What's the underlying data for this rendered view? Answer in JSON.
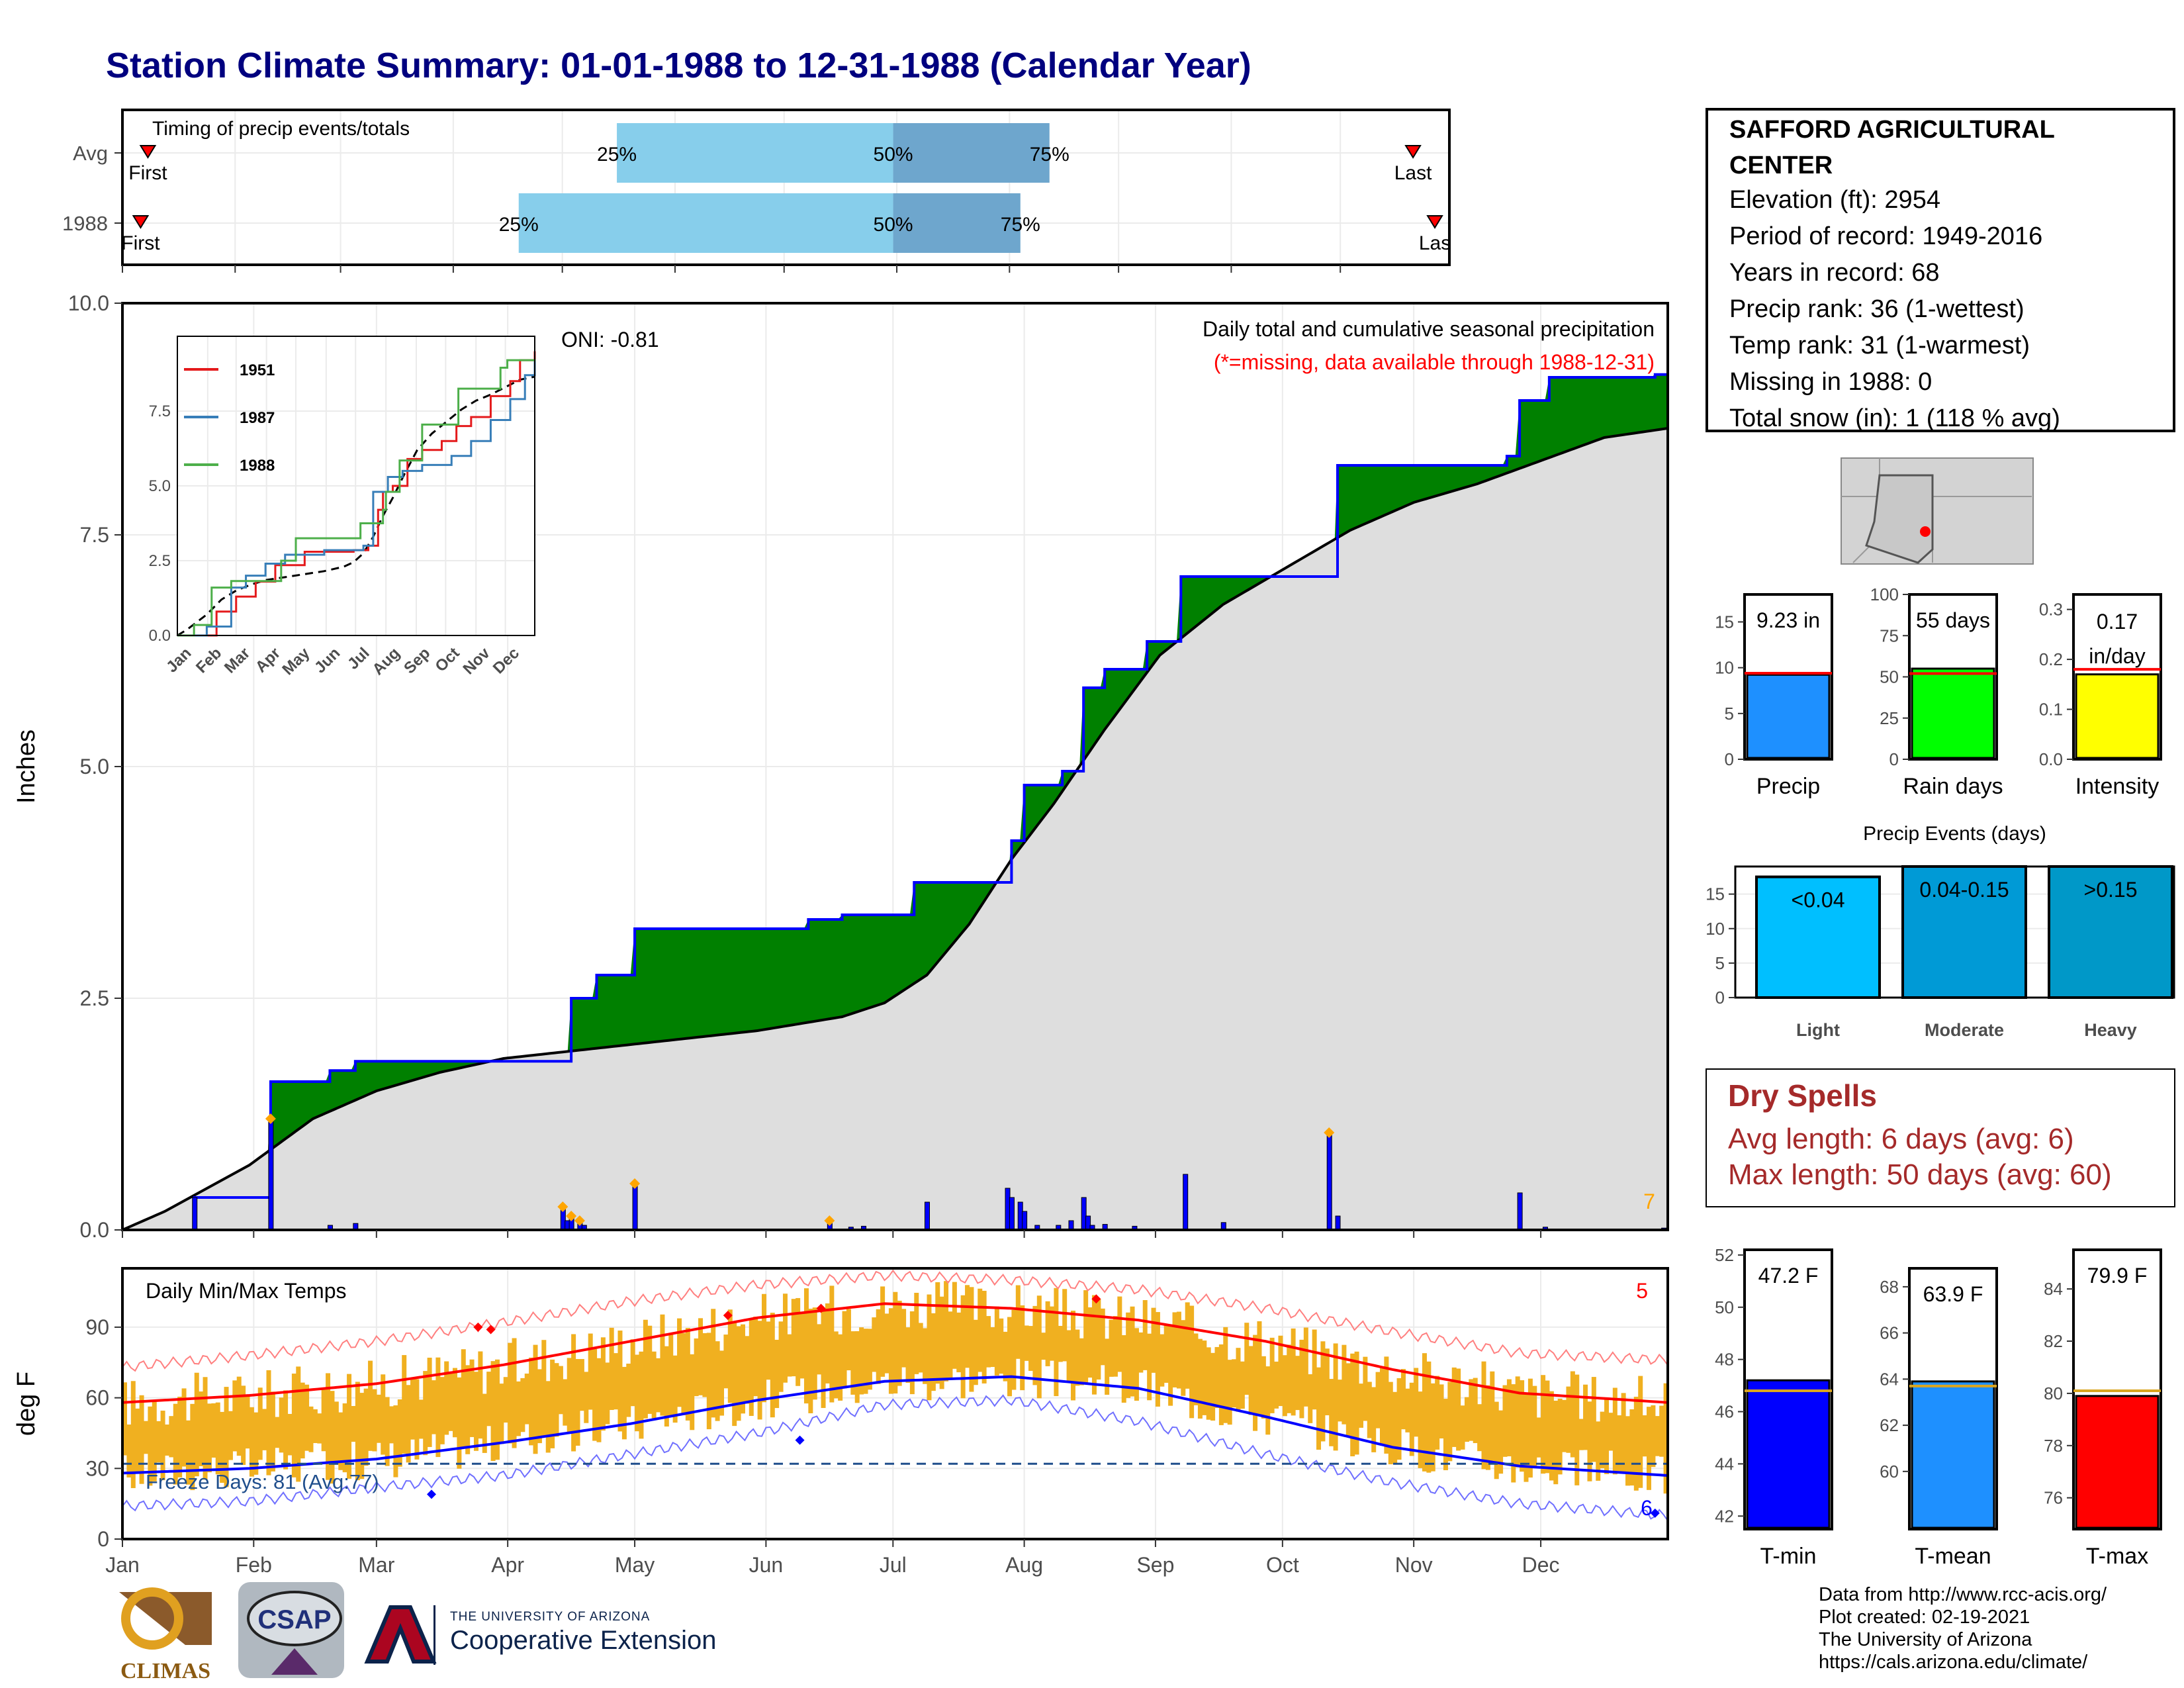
{
  "title": "Station Climate Summary: 01-01-1988 to 12-31-1988 (Calendar Year)",
  "station": {
    "name_line1": "SAFFORD AGRICULTURAL",
    "name_line2": "CENTER",
    "elevation": "Elevation (ft): 2954",
    "period": "Period of record: 1949-2016",
    "years": "Years in record: 68",
    "precip_rank": "Precip rank: 36 (1-wettest)",
    "temp_rank": "Temp rank: 31 (1-warmest)",
    "missing": "Missing in 1988: 0",
    "snow": "Total snow (in): 1 (118 % avg)"
  },
  "dry_spells": {
    "title": "Dry Spells",
    "avg": "Avg length: 6 days (avg: 6)",
    "max": "Max length: 50 days (avg: 60)"
  },
  "credits": {
    "line1": "Data from http://www.rcc-acis.org/",
    "line2": "Plot created: 02-19-2021",
    "line3": "The University of Arizona",
    "line4": "https://cals.arizona.edu/climate/"
  },
  "logos": {
    "climas": "CLIMAS",
    "csap": "CSAP",
    "ua_small": "THE UNIVERSITY OF ARIZONA",
    "ua_big": "Cooperative Extension"
  },
  "colors": {
    "title": "#00007f",
    "green": "#008000",
    "grey": "#dedede",
    "brown": "#8b5a12",
    "blue": "#0000ff",
    "bar25": "#87ceeb",
    "bar50": "#6ea6cd",
    "temp_band": "#f0b020",
    "red": "#ff0000",
    "dry": "#a52a2a",
    "light": "#00bfff",
    "moderate": "#009ad6",
    "heavy": "#0098c8"
  },
  "chart_data": [
    {
      "type": "bar",
      "id": "timing",
      "title": "Timing of precip events/totals",
      "rows": [
        {
          "label": "Avg",
          "first": "First",
          "last": "Last",
          "p25": "25%",
          "p50": "50%",
          "p75": "75%",
          "first_doy": 7,
          "p25_doy": 136,
          "p50_doy": 212,
          "p75_doy": 255,
          "last_doy": 355
        },
        {
          "label": "1988",
          "first": "First",
          "last": "Las",
          "p25": "25%",
          "p50": "50%",
          "p75": "75%",
          "first_doy": 5,
          "p25_doy": 109,
          "p50_doy": 212,
          "p75_doy": 247,
          "last_doy": 361
        }
      ]
    },
    {
      "type": "area",
      "id": "precip",
      "title": "Daily total and cumulative seasonal precipitation",
      "subtitle": "(*=missing, data available through 1988-12-31)",
      "oni": "ONI: -0.81",
      "ylabel": "Inches",
      "ylim": [
        0,
        10
      ],
      "yticks": [
        "0.0",
        "2.5",
        "5.0",
        "7.5",
        "10.0"
      ],
      "corner_label": "7",
      "x_ticks": [
        "Jan",
        "Feb",
        "Mar",
        "Apr",
        "May",
        "Jun",
        "Jul",
        "Aug",
        "Sep",
        "Oct",
        "Nov",
        "Dec"
      ],
      "cumulative_1988": [
        [
          0,
          0
        ],
        [
          17,
          0.35
        ],
        [
          35,
          1.6
        ],
        [
          49,
          1.72
        ],
        [
          55,
          1.82
        ],
        [
          97,
          1.82
        ],
        [
          106,
          2.5
        ],
        [
          112,
          2.75
        ],
        [
          121,
          3.25
        ],
        [
          162,
          3.35
        ],
        [
          170,
          3.4
        ],
        [
          187,
          3.75
        ],
        [
          203,
          3.75
        ],
        [
          210,
          4.2
        ],
        [
          213,
          4.8
        ],
        [
          222,
          4.95
        ],
        [
          227,
          5.85
        ],
        [
          232,
          6.05
        ],
        [
          242,
          6.35
        ],
        [
          250,
          7.05
        ],
        [
          285,
          7.05
        ],
        [
          287,
          8.25
        ],
        [
          327,
          8.35
        ],
        [
          330,
          8.95
        ],
        [
          337,
          9.2
        ],
        [
          362,
          9.23
        ],
        [
          365,
          9.23
        ]
      ],
      "cumulative_avg": [
        [
          0,
          0
        ],
        [
          10,
          0.2
        ],
        [
          30,
          0.7
        ],
        [
          45,
          1.2
        ],
        [
          60,
          1.5
        ],
        [
          75,
          1.7
        ],
        [
          90,
          1.85
        ],
        [
          120,
          2.0
        ],
        [
          150,
          2.15
        ],
        [
          170,
          2.3
        ],
        [
          180,
          2.45
        ],
        [
          190,
          2.75
        ],
        [
          200,
          3.3
        ],
        [
          210,
          4.0
        ],
        [
          220,
          4.6
        ],
        [
          232,
          5.4
        ],
        [
          245,
          6.2
        ],
        [
          260,
          6.75
        ],
        [
          275,
          7.15
        ],
        [
          290,
          7.55
        ],
        [
          305,
          7.85
        ],
        [
          320,
          8.05
        ],
        [
          335,
          8.3
        ],
        [
          350,
          8.55
        ],
        [
          365,
          8.65
        ]
      ],
      "daily": [
        [
          17,
          0.35
        ],
        [
          35,
          1.2
        ],
        [
          49,
          0.05
        ],
        [
          55,
          0.07
        ],
        [
          104,
          0.25
        ],
        [
          105,
          0.1
        ],
        [
          106,
          0.15
        ],
        [
          108,
          0.1
        ],
        [
          109,
          0.05
        ],
        [
          121,
          0.5
        ],
        [
          167,
          0.1
        ],
        [
          172,
          0.03
        ],
        [
          175,
          0.04
        ],
        [
          190,
          0.3
        ],
        [
          209,
          0.45
        ],
        [
          210,
          0.35
        ],
        [
          212,
          0.3
        ],
        [
          213,
          0.2
        ],
        [
          216,
          0.05
        ],
        [
          221,
          0.05
        ],
        [
          224,
          0.1
        ],
        [
          227,
          0.35
        ],
        [
          228,
          0.15
        ],
        [
          229,
          0.05
        ],
        [
          232,
          0.06
        ],
        [
          239,
          0.04
        ],
        [
          251,
          0.6
        ],
        [
          260,
          0.08
        ],
        [
          285,
          1.05
        ],
        [
          287,
          0.15
        ],
        [
          330,
          0.4
        ],
        [
          336,
          0.03
        ],
        [
          364,
          0.02
        ]
      ],
      "inset": {
        "type": "line",
        "ylim": [
          0,
          10
        ],
        "yticks": [
          "0.0",
          "2.5",
          "5.0",
          "7.5"
        ],
        "x_ticks": [
          "Jan",
          "Feb",
          "Mar",
          "Apr",
          "May",
          "Jun",
          "Jul",
          "Aug",
          "Sep",
          "Oct",
          "Nov",
          "Dec"
        ],
        "series": [
          {
            "name": "1951",
            "color": "#e41a1c",
            "values": [
              [
                0,
                0
              ],
              [
                40,
                0.8
              ],
              [
                60,
                1.3
              ],
              [
                80,
                1.8
              ],
              [
                100,
                2.35
              ],
              [
                130,
                2.8
              ],
              [
                180,
                2.85
              ],
              [
                195,
                3.0
              ],
              [
                205,
                4.2
              ],
              [
                210,
                4.8
              ],
              [
                220,
                5.0
              ],
              [
                235,
                5.9
              ],
              [
                250,
                6.2
              ],
              [
                270,
                6.5
              ],
              [
                285,
                7.0
              ],
              [
                300,
                7.3
              ],
              [
                320,
                8.0
              ],
              [
                340,
                8.5
              ],
              [
                350,
                9.2
              ],
              [
                365,
                9.5
              ]
            ]
          },
          {
            "name": "1987",
            "color": "#377eb8",
            "values": [
              [
                0,
                0
              ],
              [
                30,
                0.3
              ],
              [
                55,
                1.6
              ],
              [
                70,
                2.0
              ],
              [
                90,
                2.4
              ],
              [
                110,
                2.7
              ],
              [
                150,
                2.85
              ],
              [
                190,
                3.0
              ],
              [
                200,
                4.8
              ],
              [
                215,
                5.3
              ],
              [
                230,
                5.5
              ],
              [
                250,
                5.7
              ],
              [
                280,
                6.0
              ],
              [
                300,
                6.5
              ],
              [
                320,
                7.2
              ],
              [
                340,
                7.9
              ],
              [
                355,
                8.7
              ],
              [
                365,
                9.2
              ]
            ]
          },
          {
            "name": "1988",
            "color": "#4daf4a",
            "values": [
              [
                0,
                0
              ],
              [
                17,
                0.35
              ],
              [
                35,
                1.6
              ],
              [
                55,
                1.82
              ],
              [
                97,
                1.82
              ],
              [
                106,
                2.5
              ],
              [
                121,
                3.25
              ],
              [
                187,
                3.75
              ],
              [
                210,
                4.2
              ],
              [
                213,
                4.8
              ],
              [
                227,
                5.85
              ],
              [
                250,
                7.05
              ],
              [
                285,
                7.05
              ],
              [
                287,
                8.25
              ],
              [
                330,
                8.95
              ],
              [
                337,
                9.2
              ],
              [
                365,
                9.23
              ]
            ]
          }
        ]
      }
    },
    {
      "type": "line",
      "id": "temps",
      "title": "Daily Min/Max Temps",
      "ylabel": "deg F",
      "ylim": [
        0,
        115
      ],
      "yticks": [
        "0",
        "30",
        "60",
        "90"
      ],
      "corner_label": "5",
      "freeze_label": "Freeze Days: 81 (Avg:77)",
      "freeze_line": 32,
      "corner_label_low": "6",
      "x_ticks": [
        "Jan",
        "Feb",
        "Mar",
        "Apr",
        "May",
        "Jun",
        "Jul",
        "Aug",
        "Sep",
        "Oct",
        "Nov",
        "Dec"
      ],
      "avg_max": [
        [
          0,
          58
        ],
        [
          30,
          61
        ],
        [
          60,
          66
        ],
        [
          90,
          74
        ],
        [
          120,
          84
        ],
        [
          150,
          94
        ],
        [
          180,
          100
        ],
        [
          210,
          98
        ],
        [
          240,
          93
        ],
        [
          270,
          84
        ],
        [
          300,
          72
        ],
        [
          330,
          62
        ],
        [
          365,
          58
        ]
      ],
      "avg_min": [
        [
          0,
          28
        ],
        [
          30,
          30
        ],
        [
          60,
          34
        ],
        [
          90,
          41
        ],
        [
          120,
          49
        ],
        [
          150,
          59
        ],
        [
          180,
          67
        ],
        [
          210,
          69
        ],
        [
          240,
          64
        ],
        [
          270,
          52
        ],
        [
          300,
          39
        ],
        [
          330,
          31
        ],
        [
          365,
          27
        ]
      ],
      "record_max": [
        [
          0,
          73
        ],
        [
          30,
          78
        ],
        [
          60,
          84
        ],
        [
          90,
          92
        ],
        [
          120,
          101
        ],
        [
          150,
          108
        ],
        [
          180,
          112
        ],
        [
          210,
          110
        ],
        [
          240,
          106
        ],
        [
          270,
          98
        ],
        [
          300,
          88
        ],
        [
          330,
          79
        ],
        [
          365,
          76
        ]
      ],
      "record_min": [
        [
          0,
          14
        ],
        [
          30,
          16
        ],
        [
          60,
          22
        ],
        [
          90,
          27
        ],
        [
          120,
          36
        ],
        [
          150,
          45
        ],
        [
          180,
          57
        ],
        [
          210,
          59
        ],
        [
          240,
          50
        ],
        [
          270,
          36
        ],
        [
          300,
          24
        ],
        [
          330,
          15
        ],
        [
          365,
          10
        ]
      ]
    },
    {
      "type": "bar",
      "id": "precip_summary",
      "panels": [
        {
          "label": "Precip",
          "value": 9.23,
          "avg": 9.4,
          "text": "9.23 in",
          "ylim": [
            0,
            18
          ],
          "yticks": [
            "0",
            "5",
            "10",
            "15"
          ],
          "color": "#1e90ff"
        },
        {
          "label": "Rain days",
          "value": 55,
          "avg": 52,
          "text": "55 days",
          "ylim": [
            0,
            100
          ],
          "yticks": [
            "0",
            "25",
            "50",
            "75",
            "100"
          ],
          "color": "#00ff00"
        },
        {
          "label": "Intensity",
          "value": 0.17,
          "avg": 0.18,
          "text": "0.17 in/day",
          "text1": "0.17",
          "text2": "in/day",
          "ylim": [
            0,
            0.33
          ],
          "yticks": [
            "0.0",
            "0.1",
            "0.2",
            "0.3"
          ],
          "color": "#ffff00"
        }
      ]
    },
    {
      "type": "bar",
      "id": "events",
      "title": "Precip Events (days)",
      "ylim": [
        0,
        19
      ],
      "yticks": [
        "0",
        "5",
        "10",
        "15"
      ],
      "categories": [
        "Light",
        "Moderate",
        "Heavy"
      ],
      "bar_labels": [
        "<0.04",
        "0.04-0.15",
        ">0.15"
      ],
      "values": [
        17.5,
        19,
        19
      ]
    },
    {
      "type": "bar",
      "id": "temp_summary",
      "panels": [
        {
          "label": "T-min",
          "value": 47.2,
          "avg": 46.8,
          "text": "47.2 F",
          "ylim": [
            41.5,
            52.2
          ],
          "yticks": [
            "42",
            "44",
            "46",
            "48",
            "50",
            "52"
          ],
          "color": "#0000ff"
        },
        {
          "label": "T-mean",
          "value": 63.9,
          "avg": 63.7,
          "text": "63.9 F",
          "ylim": [
            57.5,
            68.8
          ],
          "yticks": [
            "60",
            "62",
            "64",
            "66",
            "68"
          ],
          "color": "#1e90ff"
        },
        {
          "label": "T-max",
          "value": 79.9,
          "avg": 80.1,
          "text": "79.9 F",
          "ylim": [
            74.8,
            85.5
          ],
          "yticks": [
            "76",
            "78",
            "80",
            "82",
            "84"
          ],
          "color": "#ff0000"
        }
      ]
    }
  ]
}
